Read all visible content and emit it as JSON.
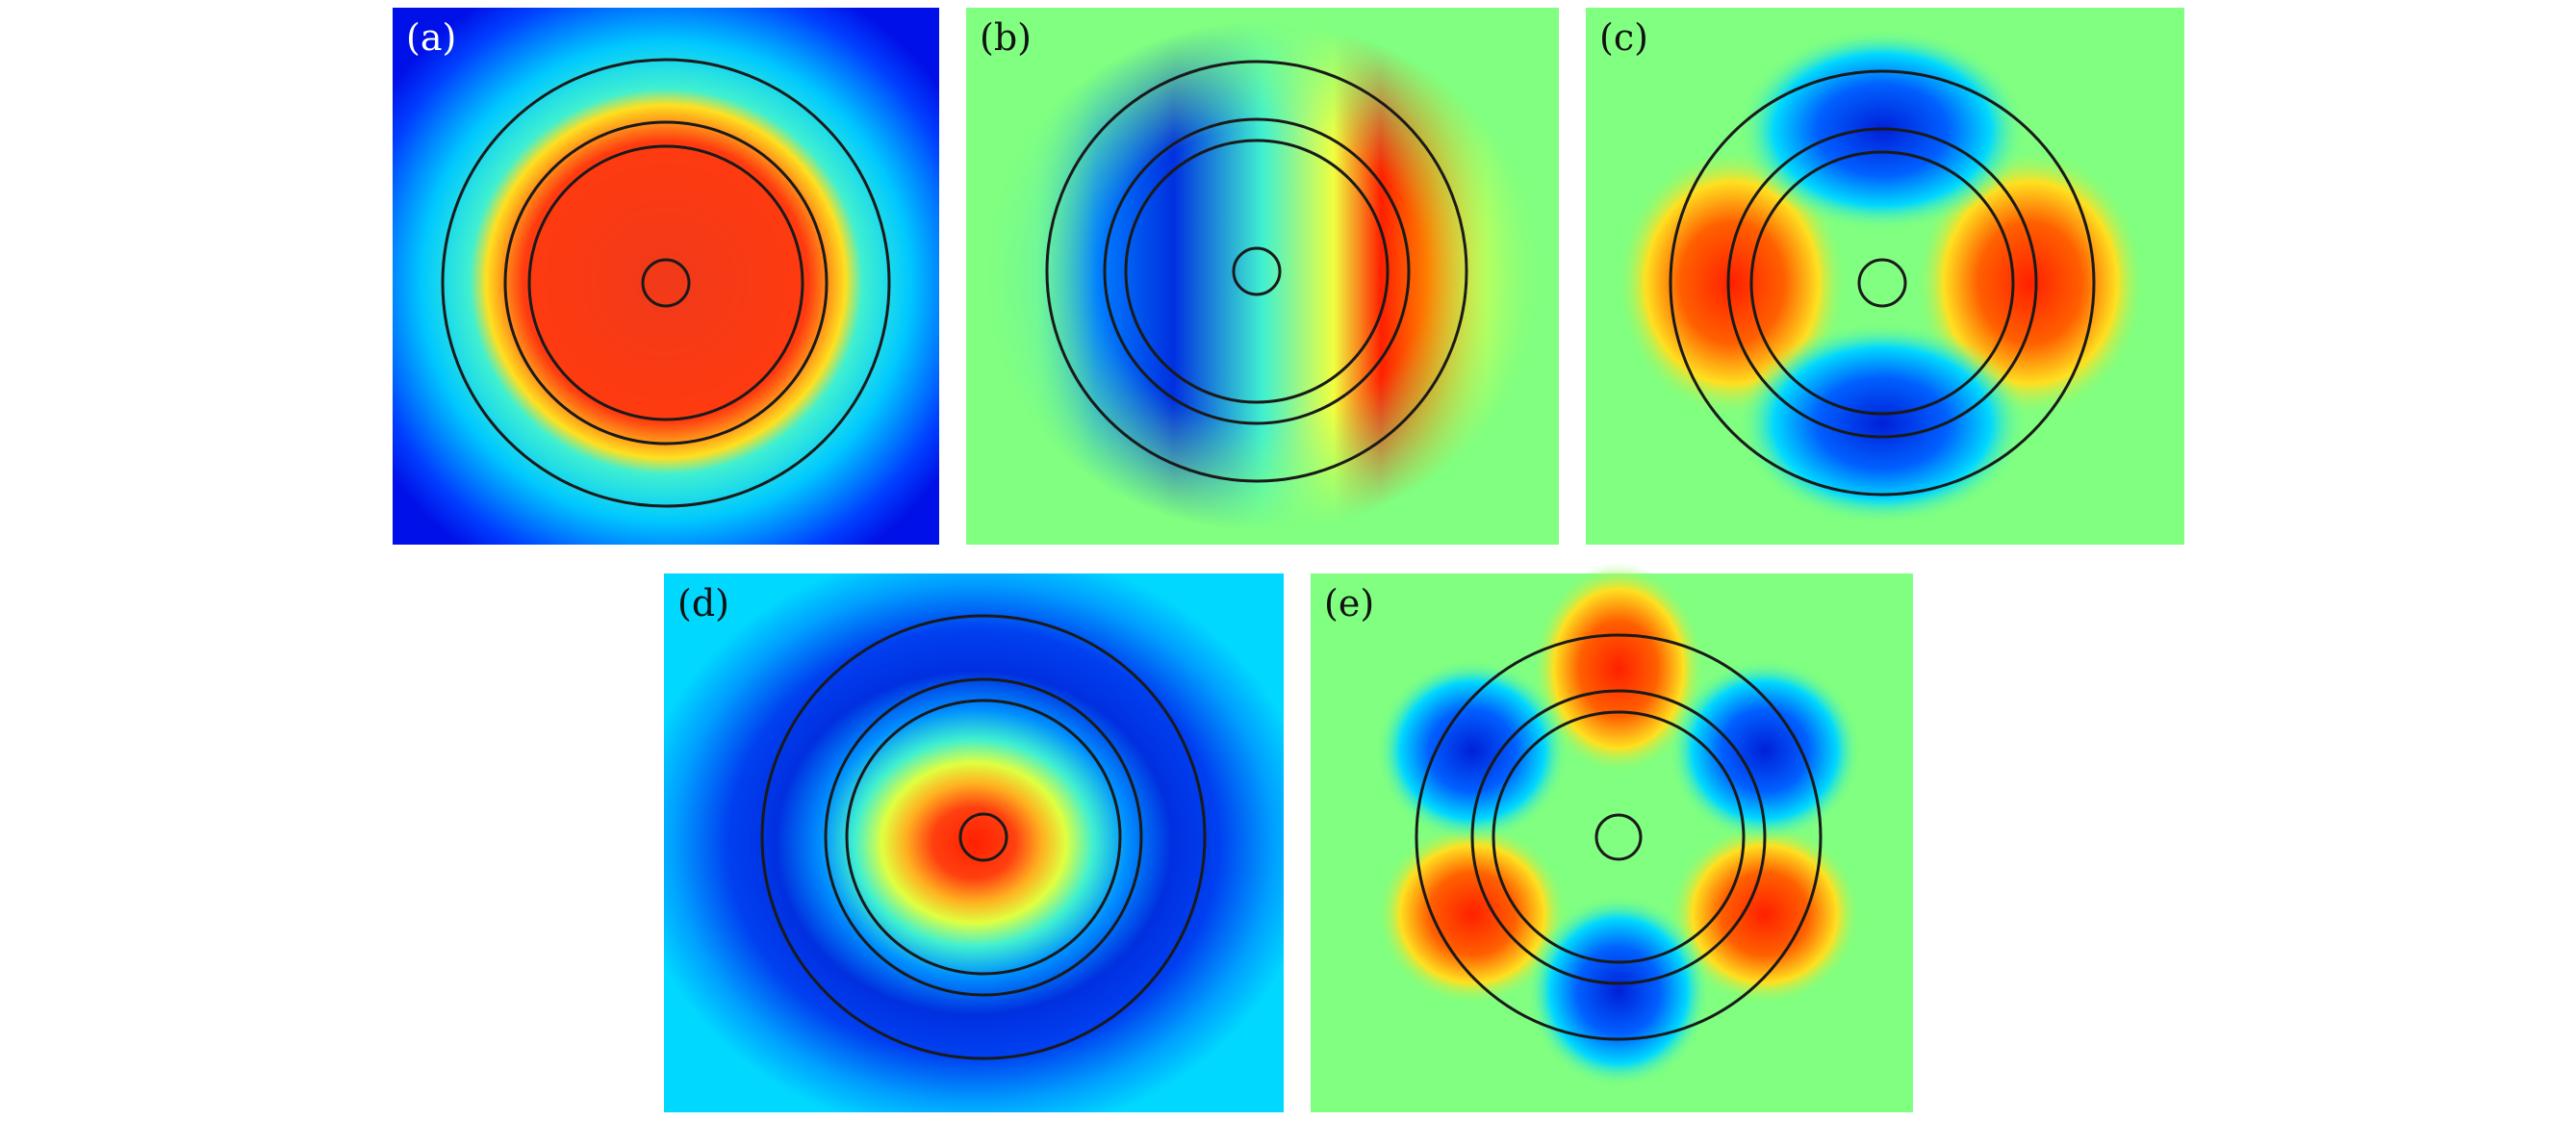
{
  "figure": {
    "panels": [
      {
        "label": "(a)",
        "mode": "fundamental-ring",
        "label_color": "#ffffff"
      },
      {
        "label": "(b)",
        "mode": "dipole-horizontal",
        "label_color": "#111111"
      },
      {
        "label": "(c)",
        "mode": "quadrupole",
        "label_color": "#111111"
      },
      {
        "label": "(d)",
        "mode": "central-peak",
        "label_color": "#111111"
      },
      {
        "label": "(e)",
        "mode": "hexapole",
        "label_color": "#111111"
      }
    ],
    "colormap": "jet",
    "ring_color": "#1a1a1a"
  }
}
